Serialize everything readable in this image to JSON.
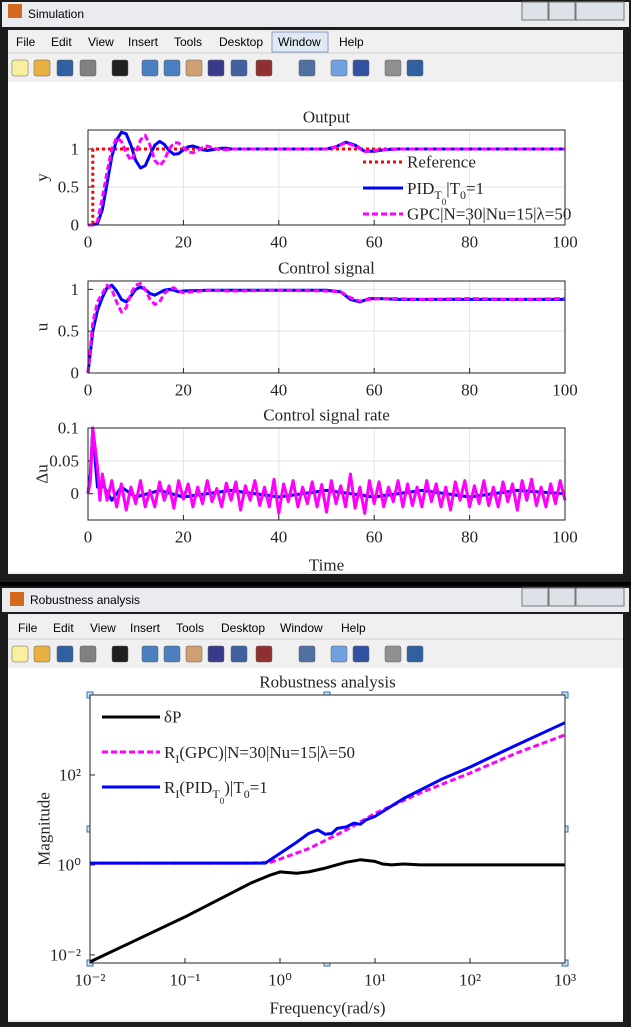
{
  "windows": [
    {
      "title": "Simulation",
      "menu": [
        "File",
        "Edit",
        "View",
        "Insert",
        "Tools",
        "Desktop",
        "Window",
        "Help"
      ]
    },
    {
      "title": "Robustness analysis",
      "menu": [
        "File",
        "Edit",
        "View",
        "Insert",
        "Tools",
        "Desktop",
        "Window",
        "Help"
      ]
    }
  ],
  "chart_data": [
    {
      "type": "line",
      "title": "Output",
      "ylabel": "y",
      "xlim": [
        0,
        100
      ],
      "ylim": [
        0,
        1.25
      ],
      "xticks": [
        0,
        20,
        40,
        60,
        80,
        100
      ],
      "yticks": [
        0,
        0.5,
        1
      ],
      "grid": true,
      "legend": "lower right",
      "series": [
        {
          "name": "Reference",
          "color": "#ff0000",
          "style": "dotted",
          "x": [
            0,
            1,
            1,
            100
          ],
          "values": [
            0,
            0,
            1,
            1
          ]
        },
        {
          "name": "PID_{T_{0}}|T_{0}=1",
          "color": "#0000ff",
          "style": "solid",
          "x": [
            0,
            1,
            2,
            3,
            4,
            5,
            6,
            7,
            8,
            9,
            10,
            11,
            12,
            13,
            14,
            15,
            16,
            17,
            18,
            19,
            20,
            21,
            22,
            23,
            24,
            25,
            26,
            27,
            28,
            29,
            30,
            35,
            40,
            45,
            50,
            52,
            54,
            56,
            58,
            60,
            62,
            65,
            70,
            75,
            80,
            85,
            90,
            95,
            100
          ],
          "values": [
            0,
            0,
            0.02,
            0.2,
            0.55,
            0.9,
            1.12,
            1.22,
            1.2,
            1.05,
            0.85,
            0.75,
            0.78,
            0.92,
            1.05,
            1.1,
            1.06,
            0.98,
            0.93,
            0.94,
            0.99,
            1.03,
            1.04,
            1.02,
            0.99,
            0.98,
            0.99,
            1,
            1.01,
            1.01,
            1,
            1,
            1,
            1,
            1,
            1.03,
            1.09,
            1.05,
            0.97,
            0.97,
            0.99,
            1,
            1,
            1,
            1,
            1,
            1,
            1,
            1
          ]
        },
        {
          "name": "GPC|N=30|Nu=15|λ=50",
          "color": "#ff00ff",
          "style": "dashed",
          "x": [
            0,
            1,
            2,
            3,
            4,
            5,
            6,
            7,
            8,
            9,
            10,
            11,
            12,
            13,
            14,
            15,
            16,
            17,
            18,
            19,
            20,
            21,
            22,
            23,
            24,
            25,
            26,
            27,
            28,
            29,
            30,
            35,
            40,
            45,
            50,
            52,
            54,
            56,
            58,
            60,
            62,
            65,
            70,
            75,
            80,
            85,
            90,
            95,
            100
          ],
          "values": [
            0,
            0,
            0.05,
            0.35,
            0.7,
            1,
            1.15,
            1.1,
            0.95,
            0.85,
            0.95,
            1.12,
            1.18,
            1.05,
            0.85,
            0.78,
            0.85,
            1,
            1.08,
            1.08,
            1.02,
            0.96,
            0.95,
            0.98,
            1.02,
            1.04,
            1.02,
            1,
            0.99,
            0.99,
            1,
            1,
            1,
            1,
            1,
            1.03,
            1.08,
            1.04,
            0.97,
            0.98,
            0.99,
            1,
            1,
            1,
            1,
            1,
            1,
            1,
            1
          ]
        }
      ]
    },
    {
      "type": "line",
      "title": "Control signal",
      "ylabel": "u",
      "xlim": [
        0,
        100
      ],
      "ylim": [
        0,
        1.1
      ],
      "xticks": [
        0,
        20,
        40,
        60,
        80,
        100
      ],
      "yticks": [
        0,
        0.5,
        1
      ],
      "grid": true,
      "series": [
        {
          "color": "#0000ff",
          "style": "solid",
          "x": [
            0,
            1,
            2,
            3,
            4,
            5,
            6,
            7,
            8,
            9,
            10,
            11,
            12,
            13,
            14,
            15,
            16,
            17,
            18,
            19,
            20,
            25,
            30,
            40,
            50,
            53,
            55,
            57,
            59,
            61,
            65,
            70,
            80,
            90,
            100
          ],
          "values": [
            0,
            0.5,
            0.75,
            0.9,
            1.02,
            1.05,
            0.98,
            0.88,
            0.85,
            0.92,
            1,
            1.03,
            1,
            0.95,
            0.93,
            0.96,
            0.99,
            1,
            0.99,
            0.97,
            0.98,
            0.99,
            0.99,
            0.99,
            0.99,
            0.97,
            0.88,
            0.85,
            0.89,
            0.89,
            0.88,
            0.88,
            0.88,
            0.88,
            0.88
          ]
        },
        {
          "color": "#ff00ff",
          "style": "dashed",
          "x": [
            0,
            1,
            2,
            3,
            4,
            5,
            6,
            7,
            8,
            9,
            10,
            11,
            12,
            13,
            14,
            15,
            16,
            17,
            18,
            19,
            20,
            25,
            30,
            40,
            50,
            53,
            55,
            57,
            59,
            61,
            65,
            70,
            80,
            90,
            100
          ],
          "values": [
            0,
            0.6,
            0.85,
            0.95,
            1.05,
            1,
            0.85,
            0.73,
            0.78,
            0.95,
            1.05,
            1.07,
            1,
            0.88,
            0.82,
            0.85,
            0.95,
            1,
            1.02,
            0.98,
            0.96,
            0.99,
            0.98,
            0.99,
            0.98,
            0.97,
            0.9,
            0.86,
            0.88,
            0.89,
            0.89,
            0.88,
            0.89,
            0.88,
            0.89
          ]
        }
      ]
    },
    {
      "type": "line",
      "title": "Control signal rate",
      "xlabel": "Time",
      "ylabel": "Δu",
      "xlim": [
        0,
        100
      ],
      "ylim": [
        -0.04,
        0.1
      ],
      "xticks": [
        0,
        20,
        40,
        60,
        80,
        100
      ],
      "yticks": [
        0,
        0.05,
        0.1
      ],
      "grid": true,
      "series": [
        {
          "color": "#0000ff",
          "style": "solid",
          "x": [
            0,
            0.5,
            1,
            1.5,
            2,
            3,
            5,
            7,
            10,
            15,
            20,
            30,
            40,
            50,
            60,
            70,
            80,
            90,
            100
          ],
          "values": [
            0,
            0.03,
            0.1,
            0.05,
            0.01,
            0.015,
            -0.01,
            0.01,
            -0.005,
            0.005,
            -0.005,
            0.005,
            -0.005,
            0.005,
            -0.005,
            0.005,
            -0.005,
            0.005,
            0
          ]
        },
        {
          "color": "#ff00ff",
          "style": "solid",
          "x": [
            0,
            0.5,
            1,
            1.5,
            2,
            2.5,
            3,
            4,
            5,
            6,
            7,
            8,
            9,
            10,
            11,
            12,
            13,
            14,
            15,
            16,
            17,
            18,
            19,
            20,
            21,
            22,
            23,
            24,
            25,
            26,
            27,
            28,
            29,
            30,
            31,
            32,
            33,
            34,
            35,
            36,
            37,
            38,
            39,
            40,
            41,
            42,
            43,
            44,
            45,
            46,
            47,
            48,
            49,
            50,
            51,
            52,
            53,
            54,
            55,
            56,
            57,
            58,
            59,
            60,
            61,
            62,
            63,
            64,
            65,
            66,
            67,
            68,
            69,
            70,
            71,
            72,
            73,
            74,
            75,
            76,
            77,
            78,
            79,
            80,
            81,
            82,
            83,
            84,
            85,
            86,
            87,
            88,
            89,
            90,
            91,
            92,
            93,
            94,
            95,
            96,
            97,
            98,
            99,
            100
          ],
          "values": [
            0,
            0.02,
            0.1,
            0.07,
            0.04,
            -0.01,
            0.03,
            -0.01,
            0.02,
            -0.02,
            0.015,
            -0.025,
            0.01,
            -0.015,
            0.02,
            -0.02,
            0.005,
            -0.02,
            0.018,
            -0.01,
            0.012,
            -0.022,
            0.02,
            -0.008,
            0.015,
            -0.02,
            0.01,
            -0.015,
            0.02,
            -0.012,
            0.008,
            -0.02,
            0.016,
            -0.01,
            0.018,
            -0.025,
            0.012,
            -0.01,
            0.02,
            -0.018,
            0.01,
            -0.02,
            0.022,
            -0.03,
            0.015,
            -0.012,
            0.02,
            -0.02,
            0.01,
            -0.015,
            0.018,
            -0.02,
            0.014,
            -0.028,
            0.02,
            -0.015,
            0.012,
            -0.02,
            0.03,
            -0.022,
            0.01,
            -0.03,
            0.02,
            -0.015,
            0.018,
            -0.02,
            0.01,
            -0.012,
            0.02,
            -0.02,
            0.015,
            -0.018,
            0.01,
            -0.02,
            0.02,
            -0.012,
            0.015,
            -0.02,
            0.01,
            -0.025,
            0.018,
            -0.01,
            0.02,
            -0.02,
            0.012,
            -0.015,
            0.02,
            -0.018,
            0.01,
            -0.02,
            0.018,
            -0.012,
            0.015,
            -0.025,
            0.02,
            -0.01,
            0.022,
            -0.018,
            0.01,
            -0.02,
            0.015,
            -0.015,
            0.02,
            -0.01
          ]
        }
      ]
    },
    {
      "type": "line",
      "title": "Robustness analysis",
      "xlabel": "Frequency(rad/s)",
      "ylabel": "Magnitude",
      "xscale": "log",
      "yscale": "log",
      "grid": false,
      "legend": "upper left",
      "xlim": [
        0.01,
        1000
      ],
      "ylim": [
        0.0066,
        6000
      ],
      "xticks": [
        {
          "value": 0.01,
          "label": "10⁻²"
        },
        {
          "value": 0.1,
          "label": "10⁻¹"
        },
        {
          "value": 1,
          "label": "10⁰"
        },
        {
          "value": 10,
          "label": "10¹"
        },
        {
          "value": 100,
          "label": "10²"
        },
        {
          "value": 1000,
          "label": "10³"
        }
      ],
      "yticks": [
        {
          "value": 0.01,
          "label": "10⁻²"
        },
        {
          "value": 1,
          "label": "10⁰"
        },
        {
          "value": 100,
          "label": "10²"
        }
      ],
      "series": [
        {
          "name": "δP",
          "color": "#000000",
          "style": "solid",
          "x": [
            0.01,
            0.1,
            0.5,
            0.8,
            1,
            1.5,
            2,
            3,
            5,
            7,
            10,
            12,
            15,
            20,
            30,
            100,
            1000
          ],
          "values": [
            0.007,
            0.07,
            0.4,
            0.6,
            0.7,
            0.65,
            0.7,
            0.85,
            1.15,
            1.3,
            1.2,
            1.05,
            1,
            1.05,
            1,
            1,
            1
          ]
        },
        {
          "name": "R_{I}(GPC)|N=30|Nu=15|λ=50",
          "color": "#ff00ff",
          "style": "dashed",
          "x": [
            0.01,
            0.5,
            0.8,
            1,
            2,
            3,
            5,
            10,
            30,
            100,
            300,
            1000
          ],
          "values": [
            1.1,
            1.1,
            1.15,
            1.35,
            2.3,
            3.5,
            6,
            14,
            40,
            110,
            300,
            780
          ]
        },
        {
          "name": "R_{I}(PID_{T_{0}})|T_{0}=1",
          "color": "#0000ff",
          "style": "solid",
          "x": [
            0.01,
            0.7,
            1,
            1.5,
            2,
            2.5,
            3,
            3.5,
            4,
            5,
            6,
            7,
            8,
            10,
            20,
            50,
            100,
            300,
            1000
          ],
          "values": [
            1.1,
            1.1,
            1.8,
            3.2,
            5,
            6,
            4.8,
            5,
            6.5,
            7,
            8.5,
            8,
            10,
            12,
            30,
            80,
            150,
            450,
            1450
          ]
        }
      ]
    }
  ]
}
